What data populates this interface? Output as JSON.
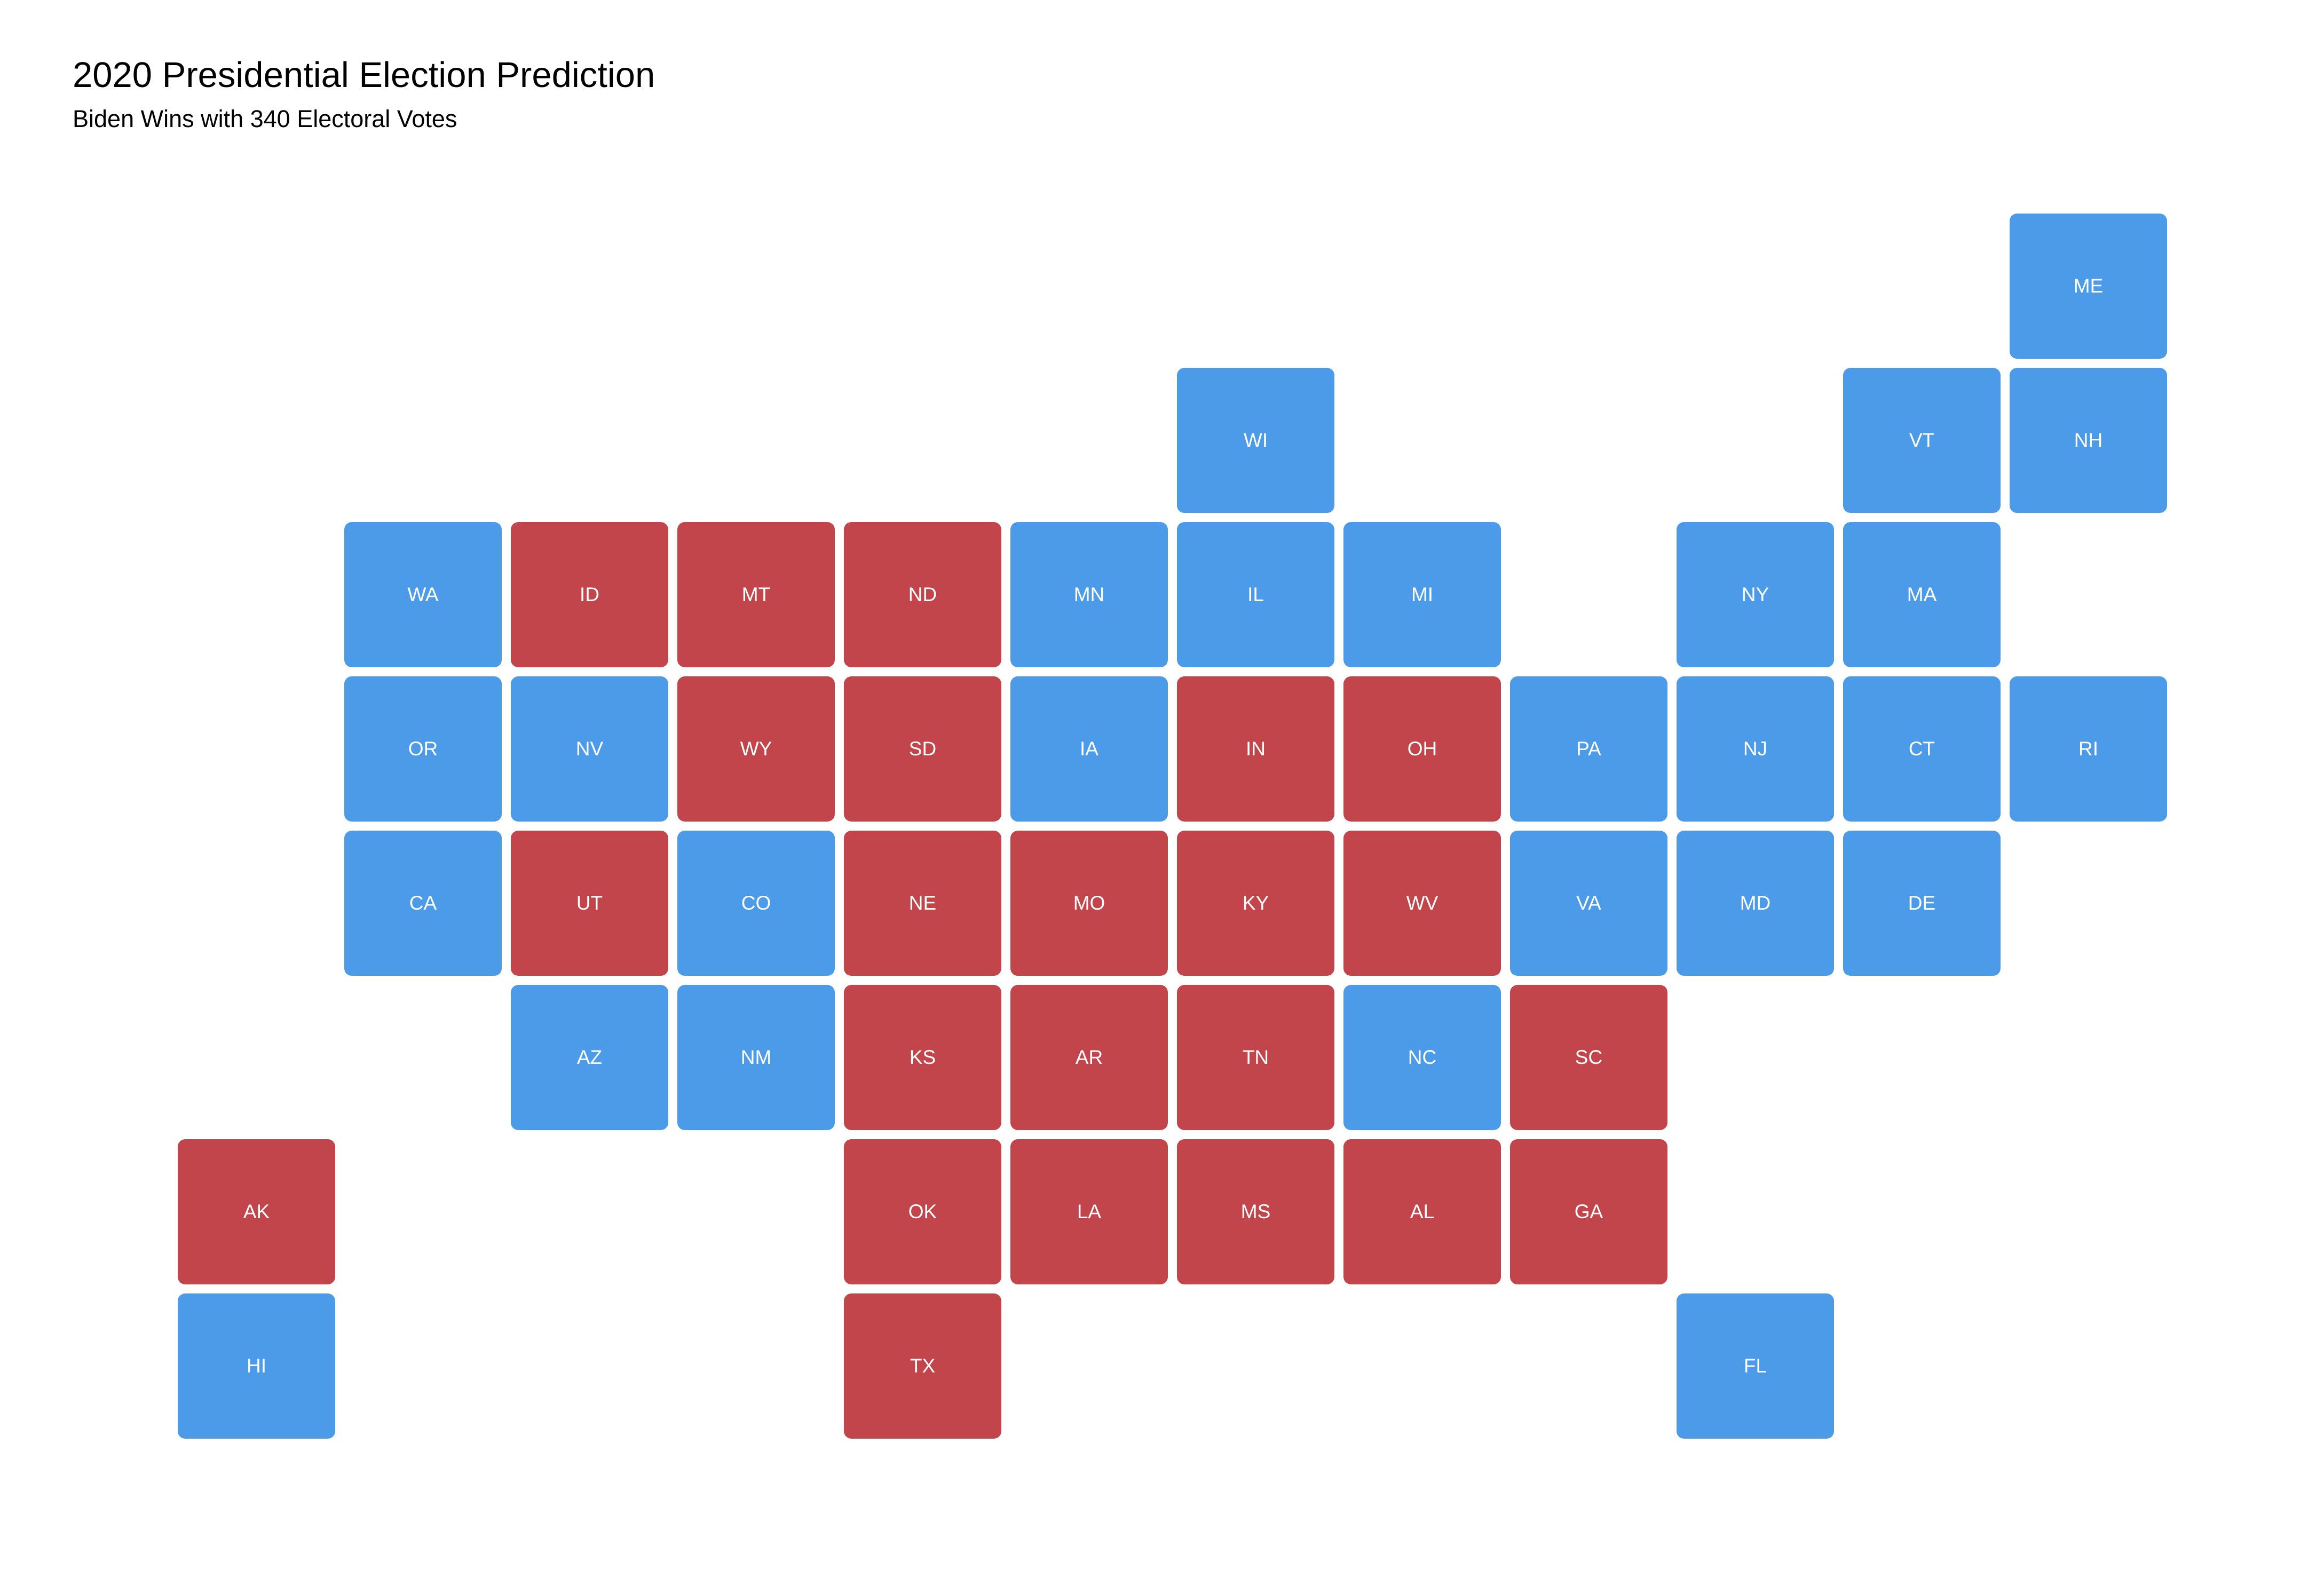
{
  "title": "2020 Presidential Election Prediction",
  "subtitle": "Biden Wins with 340 Electoral Votes",
  "colors": {
    "dem": "#4C9BE8",
    "rep": "#C1454A"
  },
  "states": [
    {
      "abbr": "ME",
      "row": 0,
      "col": 11,
      "party": "dem"
    },
    {
      "abbr": "WI",
      "row": 1,
      "col": 6,
      "party": "dem"
    },
    {
      "abbr": "VT",
      "row": 1,
      "col": 10,
      "party": "dem"
    },
    {
      "abbr": "NH",
      "row": 1,
      "col": 11,
      "party": "dem"
    },
    {
      "abbr": "WA",
      "row": 2,
      "col": 1,
      "party": "dem"
    },
    {
      "abbr": "ID",
      "row": 2,
      "col": 2,
      "party": "rep"
    },
    {
      "abbr": "MT",
      "row": 2,
      "col": 3,
      "party": "rep"
    },
    {
      "abbr": "ND",
      "row": 2,
      "col": 4,
      "party": "rep"
    },
    {
      "abbr": "MN",
      "row": 2,
      "col": 5,
      "party": "dem"
    },
    {
      "abbr": "IL",
      "row": 2,
      "col": 6,
      "party": "dem"
    },
    {
      "abbr": "MI",
      "row": 2,
      "col": 7,
      "party": "dem"
    },
    {
      "abbr": "NY",
      "row": 2,
      "col": 9,
      "party": "dem"
    },
    {
      "abbr": "MA",
      "row": 2,
      "col": 10,
      "party": "dem"
    },
    {
      "abbr": "OR",
      "row": 3,
      "col": 1,
      "party": "dem"
    },
    {
      "abbr": "NV",
      "row": 3,
      "col": 2,
      "party": "dem"
    },
    {
      "abbr": "WY",
      "row": 3,
      "col": 3,
      "party": "rep"
    },
    {
      "abbr": "SD",
      "row": 3,
      "col": 4,
      "party": "rep"
    },
    {
      "abbr": "IA",
      "row": 3,
      "col": 5,
      "party": "dem"
    },
    {
      "abbr": "IN",
      "row": 3,
      "col": 6,
      "party": "rep"
    },
    {
      "abbr": "OH",
      "row": 3,
      "col": 7,
      "party": "rep"
    },
    {
      "abbr": "PA",
      "row": 3,
      "col": 8,
      "party": "dem"
    },
    {
      "abbr": "NJ",
      "row": 3,
      "col": 9,
      "party": "dem"
    },
    {
      "abbr": "CT",
      "row": 3,
      "col": 10,
      "party": "dem"
    },
    {
      "abbr": "RI",
      "row": 3,
      "col": 11,
      "party": "dem"
    },
    {
      "abbr": "CA",
      "row": 4,
      "col": 1,
      "party": "dem"
    },
    {
      "abbr": "UT",
      "row": 4,
      "col": 2,
      "party": "rep"
    },
    {
      "abbr": "CO",
      "row": 4,
      "col": 3,
      "party": "dem"
    },
    {
      "abbr": "NE",
      "row": 4,
      "col": 4,
      "party": "rep"
    },
    {
      "abbr": "MO",
      "row": 4,
      "col": 5,
      "party": "rep"
    },
    {
      "abbr": "KY",
      "row": 4,
      "col": 6,
      "party": "rep"
    },
    {
      "abbr": "WV",
      "row": 4,
      "col": 7,
      "party": "rep"
    },
    {
      "abbr": "VA",
      "row": 4,
      "col": 8,
      "party": "dem"
    },
    {
      "abbr": "MD",
      "row": 4,
      "col": 9,
      "party": "dem"
    },
    {
      "abbr": "DE",
      "row": 4,
      "col": 10,
      "party": "dem"
    },
    {
      "abbr": "AZ",
      "row": 5,
      "col": 2,
      "party": "dem"
    },
    {
      "abbr": "NM",
      "row": 5,
      "col": 3,
      "party": "dem"
    },
    {
      "abbr": "KS",
      "row": 5,
      "col": 4,
      "party": "rep"
    },
    {
      "abbr": "AR",
      "row": 5,
      "col": 5,
      "party": "rep"
    },
    {
      "abbr": "TN",
      "row": 5,
      "col": 6,
      "party": "rep"
    },
    {
      "abbr": "NC",
      "row": 5,
      "col": 7,
      "party": "dem"
    },
    {
      "abbr": "SC",
      "row": 5,
      "col": 8,
      "party": "rep"
    },
    {
      "abbr": "AK",
      "row": 6,
      "col": 0,
      "party": "rep"
    },
    {
      "abbr": "OK",
      "row": 6,
      "col": 4,
      "party": "rep"
    },
    {
      "abbr": "LA",
      "row": 6,
      "col": 5,
      "party": "rep"
    },
    {
      "abbr": "MS",
      "row": 6,
      "col": 6,
      "party": "rep"
    },
    {
      "abbr": "AL",
      "row": 6,
      "col": 7,
      "party": "rep"
    },
    {
      "abbr": "GA",
      "row": 6,
      "col": 8,
      "party": "rep"
    },
    {
      "abbr": "HI",
      "row": 7,
      "col": 0,
      "party": "dem"
    },
    {
      "abbr": "TX",
      "row": 7,
      "col": 4,
      "party": "rep"
    },
    {
      "abbr": "FL",
      "row": 7,
      "col": 9,
      "party": "dem"
    }
  ]
}
